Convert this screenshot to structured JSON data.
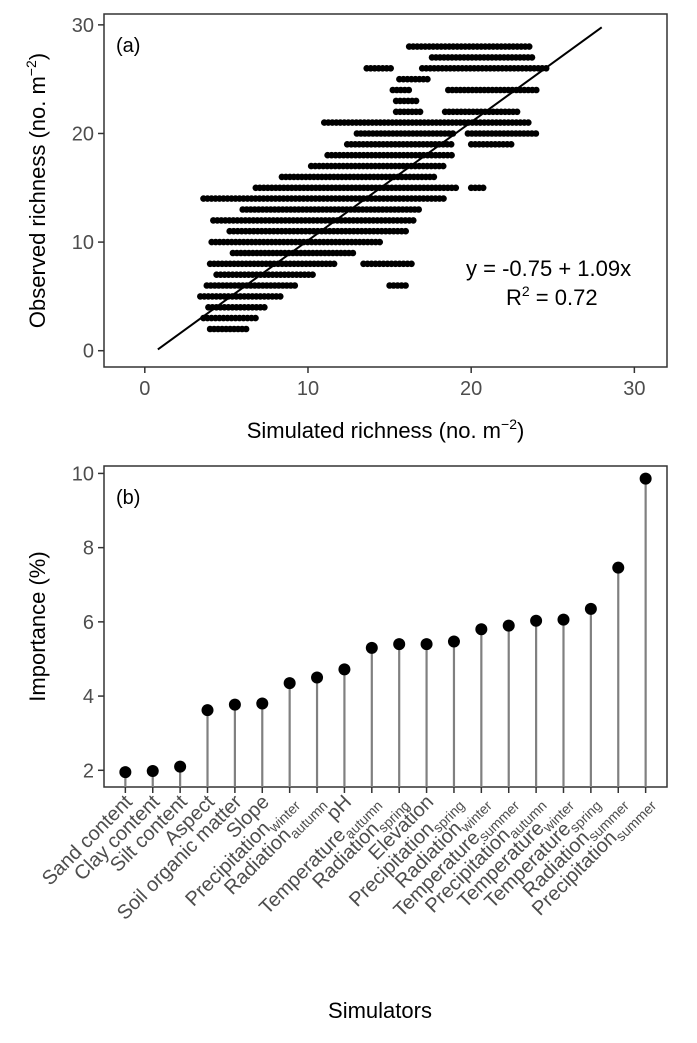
{
  "chart_data": [
    {
      "type": "scatter",
      "panel_label": "(a)",
      "xlabel": "Simulated richness (no. m",
      "xlabel_sup": "−2",
      "xlabel_end": ")",
      "ylabel": "Observed richness (no. m",
      "ylabel_sup": "−2",
      "ylabel_end": ")",
      "xlim": [
        -2.5,
        32
      ],
      "ylim": [
        -1.5,
        31
      ],
      "x_ticks": [
        0,
        10,
        20,
        30
      ],
      "y_ticks": [
        0,
        10,
        20,
        30
      ],
      "grid": false,
      "fit": {
        "intercept": -0.75,
        "slope": 1.09,
        "x_range": [
          0.8,
          28.0
        ]
      },
      "equation": "y = -0.75 + 1.09x",
      "r2_prefix": "R",
      "r2_sup": "2",
      "r2_value": " = 0.72",
      "point_bands": [
        {
          "y": 2,
          "x": [
            4.0,
            6.4
          ]
        },
        {
          "y": 3,
          "x": [
            3.6,
            7.0
          ]
        },
        {
          "y": 4,
          "x": [
            3.9,
            7.4
          ]
        },
        {
          "y": 5,
          "x": [
            3.4,
            8.4
          ]
        },
        {
          "y": 6,
          "x": [
            3.8,
            9.2
          ]
        },
        {
          "y": 6,
          "x": [
            15.0,
            16.0
          ]
        },
        {
          "y": 7,
          "x": [
            4.4,
            10.5
          ]
        },
        {
          "y": 8,
          "x": [
            4.0,
            11.6
          ]
        },
        {
          "y": 8,
          "x": [
            13.4,
            16.4
          ]
        },
        {
          "y": 9,
          "x": [
            5.4,
            12.8
          ]
        },
        {
          "y": 10,
          "x": [
            4.1,
            14.6
          ]
        },
        {
          "y": 11,
          "x": [
            5.2,
            16.0
          ]
        },
        {
          "y": 12,
          "x": [
            4.2,
            16.6
          ]
        },
        {
          "y": 13,
          "x": [
            6.0,
            17.0
          ]
        },
        {
          "y": 14,
          "x": [
            3.6,
            18.4
          ]
        },
        {
          "y": 15,
          "x": [
            6.8,
            19.2
          ]
        },
        {
          "y": 15,
          "x": [
            20.0,
            20.8
          ]
        },
        {
          "y": 16,
          "x": [
            8.4,
            17.8
          ]
        },
        {
          "y": 17,
          "x": [
            10.2,
            18.4
          ]
        },
        {
          "y": 18,
          "x": [
            11.2,
            18.8
          ]
        },
        {
          "y": 19,
          "x": [
            12.4,
            19.0
          ]
        },
        {
          "y": 19,
          "x": [
            20.0,
            22.6
          ]
        },
        {
          "y": 20,
          "x": [
            13.0,
            19.0
          ]
        },
        {
          "y": 20,
          "x": [
            19.8,
            24.0
          ]
        },
        {
          "y": 21,
          "x": [
            11.0,
            23.6
          ]
        },
        {
          "y": 22,
          "x": [
            15.4,
            17.0
          ]
        },
        {
          "y": 22,
          "x": [
            18.4,
            23.0
          ]
        },
        {
          "y": 23,
          "x": [
            15.4,
            16.8
          ]
        },
        {
          "y": 24,
          "x": [
            15.2,
            16.4
          ]
        },
        {
          "y": 24,
          "x": [
            18.6,
            24.0
          ]
        },
        {
          "y": 25,
          "x": [
            15.6,
            17.4
          ]
        },
        {
          "y": 26,
          "x": [
            13.6,
            15.2
          ]
        },
        {
          "y": 26,
          "x": [
            17.0,
            24.6
          ]
        },
        {
          "y": 27,
          "x": [
            17.6,
            23.8
          ]
        },
        {
          "y": 28,
          "x": [
            16.2,
            23.6
          ]
        }
      ]
    },
    {
      "type": "lollipop",
      "panel_label": "(b)",
      "xlabel": "Simulators",
      "ylabel": "Importance (%)",
      "ylim": [
        1.55,
        10.2
      ],
      "y_ticks": [
        2,
        4,
        6,
        8,
        10
      ],
      "grid": false,
      "categories": [
        {
          "name": "Sand content",
          "sub": ""
        },
        {
          "name": "Clay content",
          "sub": ""
        },
        {
          "name": "Silt content",
          "sub": ""
        },
        {
          "name": "Aspect",
          "sub": ""
        },
        {
          "name": "Soil organic matter",
          "sub": ""
        },
        {
          "name": "Slope",
          "sub": ""
        },
        {
          "name": "Precipitation",
          "sub": "winter"
        },
        {
          "name": "Radiation",
          "sub": "autumn"
        },
        {
          "name": "pH",
          "sub": ""
        },
        {
          "name": "Temperature",
          "sub": "autumn"
        },
        {
          "name": "Radiation",
          "sub": "spring"
        },
        {
          "name": "Elevation",
          "sub": ""
        },
        {
          "name": "Precipitation",
          "sub": "spring"
        },
        {
          "name": "Radiation",
          "sub": "winter"
        },
        {
          "name": "Temperature",
          "sub": "summer"
        },
        {
          "name": "Precipitation",
          "sub": "autumn"
        },
        {
          "name": "Temperature",
          "sub": "winter"
        },
        {
          "name": "Temperature",
          "sub": "spring"
        },
        {
          "name": "Radiation",
          "sub": "summer"
        },
        {
          "name": "Precipitation",
          "sub": "summer"
        }
      ],
      "values": [
        1.95,
        1.98,
        2.1,
        3.62,
        3.77,
        3.8,
        4.35,
        4.5,
        4.72,
        5.3,
        5.4,
        5.4,
        5.47,
        5.8,
        5.9,
        6.03,
        6.06,
        6.35,
        7.46,
        9.86
      ]
    }
  ]
}
